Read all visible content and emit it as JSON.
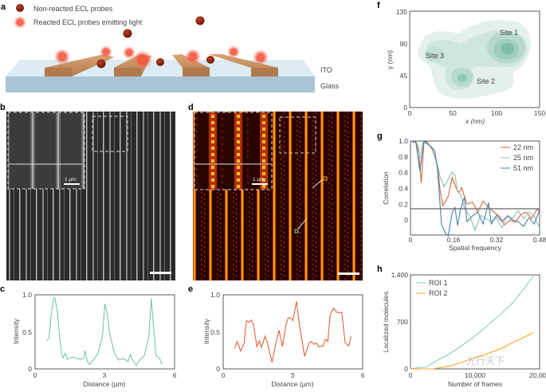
{
  "panels": {
    "a": {
      "label": "a",
      "legend": [
        "Non-reacted ECL probes",
        "Reacted ECL probes emitting light"
      ],
      "layers": [
        "ITO",
        "Glass"
      ]
    },
    "b": {
      "label": "b",
      "inset_scale": "1 µm"
    },
    "c": {
      "label": "c"
    },
    "d": {
      "label": "d",
      "inset_scale": "1 µm"
    },
    "e": {
      "label": "e"
    },
    "f": {
      "label": "f",
      "xlabel": "x (nm)",
      "ylabel": "y (nm)",
      "xticks": [
        "0",
        "50",
        "100",
        "150"
      ],
      "yticks": [
        "0",
        "45",
        "90",
        "135"
      ],
      "sites": [
        "Site 1",
        "Site 2",
        "Site 3"
      ],
      "color": "#5fae95"
    },
    "g": {
      "label": "g"
    },
    "h": {
      "label": "h"
    }
  },
  "watermark": "光行天下",
  "chart_data": [
    {
      "panel": "c",
      "type": "line",
      "xlabel": "Distance (µm)",
      "ylabel": "Intensity",
      "xlim": [
        0,
        6
      ],
      "ylim": [
        0,
        1.0
      ],
      "xticks": [
        "0",
        "3",
        "6"
      ],
      "yticks": [
        "0",
        "0.5",
        "1.0"
      ],
      "series": [
        {
          "color": "#7cc4a8",
          "x": [
            0.5,
            0.6,
            0.7,
            0.8,
            0.85,
            0.95,
            1.05,
            1.15,
            1.2,
            1.3,
            1.4,
            1.6,
            1.8,
            2.0,
            2.1,
            2.15,
            2.25,
            2.35,
            2.5,
            2.7,
            2.9,
            3.0,
            3.1,
            3.2,
            3.4,
            3.6,
            3.8,
            4.0,
            4.1,
            4.2,
            4.35,
            4.5,
            4.7,
            4.9,
            5.0,
            5.1,
            5.2,
            5.35,
            5.45
          ],
          "y": [
            0.38,
            0.42,
            0.75,
            0.95,
            0.96,
            0.8,
            0.45,
            0.2,
            0.15,
            0.21,
            0.13,
            0.16,
            0.14,
            0.13,
            0.15,
            0.25,
            0.1,
            0.06,
            0.12,
            0.2,
            0.45,
            0.88,
            0.75,
            0.5,
            0.22,
            0.12,
            0.14,
            0.1,
            0.2,
            0.12,
            0.05,
            0.12,
            0.18,
            0.45,
            0.95,
            0.55,
            0.18,
            0.15,
            0.06
          ]
        }
      ]
    },
    {
      "panel": "e",
      "type": "line",
      "xlabel": "Distance (µm)",
      "ylabel": "Intensity",
      "xlim": [
        0,
        6
      ],
      "ylim": [
        0,
        1.0
      ],
      "xticks": [
        "0",
        "3",
        "6"
      ],
      "yticks": [
        "0",
        "0.5",
        "1.0"
      ],
      "series": [
        {
          "color": "#e0643a",
          "x": [
            0.5,
            0.6,
            0.75,
            0.9,
            1.0,
            1.1,
            1.2,
            1.3,
            1.45,
            1.55,
            1.65,
            1.8,
            1.9,
            2.1,
            2.3,
            2.4,
            2.55,
            2.7,
            2.8,
            2.9,
            3.0,
            3.15,
            3.3,
            3.5,
            3.7,
            3.8,
            3.9,
            4.0,
            4.1,
            4.3,
            4.4,
            4.5,
            4.6,
            4.75,
            4.9,
            5.1,
            5.25,
            5.4,
            5.5
          ],
          "y": [
            0.28,
            0.37,
            0.24,
            0.35,
            0.65,
            0.63,
            0.66,
            0.6,
            0.3,
            0.38,
            0.29,
            0.44,
            0.35,
            0.09,
            0.4,
            0.52,
            0.3,
            0.6,
            0.69,
            0.69,
            0.65,
            0.91,
            0.55,
            0.17,
            0.35,
            0.37,
            0.33,
            0.35,
            0.3,
            0.31,
            0.4,
            0.37,
            0.73,
            0.82,
            0.76,
            0.76,
            0.35,
            0.31,
            0.44
          ]
        }
      ]
    },
    {
      "panel": "g",
      "type": "line",
      "xlabel": "Spatial frequency",
      "ylabel": "Correlation",
      "xlim": [
        0,
        0.48
      ],
      "ylim": [
        -0.19,
        1.0
      ],
      "xticks": [
        "0",
        "0.16",
        "0.32",
        "0.48"
      ],
      "yticks": [
        "0",
        "0.2",
        "0.4",
        "0.6",
        "0.8",
        "1.0"
      ],
      "threshold": 0.143,
      "legend": "top-right",
      "series": [
        {
          "name": "22 nm",
          "color": "#d9653b",
          "x": [
            0,
            0.02,
            0.03,
            0.04,
            0.05,
            0.06,
            0.07,
            0.08,
            0.1,
            0.11,
            0.12,
            0.14,
            0.155,
            0.17,
            0.18,
            0.19,
            0.21,
            0.23,
            0.25,
            0.27,
            0.29,
            0.31,
            0.33,
            0.35,
            0.37,
            0.39,
            0.41,
            0.43,
            0.45,
            0.47,
            0.48
          ],
          "y": [
            1,
            0.99,
            0.9,
            0.47,
            0.99,
            0.99,
            0.95,
            0.9,
            0.7,
            0.38,
            0.18,
            0.3,
            0.54,
            0.4,
            0.35,
            0.41,
            0.2,
            0.23,
            0.1,
            0.24,
            0.16,
            0.1,
            0.05,
            -0.06,
            0,
            -0.03,
            0.07,
            0.1,
            0.02,
            0.13,
            0.13
          ]
        },
        {
          "name": "25 nm",
          "color": "#8dbfa6",
          "x": [
            0,
            0.02,
            0.035,
            0.045,
            0.06,
            0.08,
            0.1,
            0.11,
            0.125,
            0.14,
            0.155,
            0.165,
            0.175,
            0.185,
            0.2,
            0.22,
            0.24,
            0.26,
            0.28,
            0.3,
            0.32,
            0.34,
            0.36,
            0.38,
            0.4,
            0.42,
            0.44,
            0.46,
            0.48
          ],
          "y": [
            1,
            0.98,
            0.78,
            0.98,
            0.97,
            0.92,
            0.7,
            0.55,
            0.42,
            0.52,
            0.61,
            0.57,
            0.36,
            0.33,
            0.15,
            0.05,
            -0.13,
            0.06,
            0.02,
            -0.02,
            0.03,
            -0.1,
            0.06,
            0.02,
            0.12,
            0.02,
            0.1,
            0.05,
            -0.1
          ]
        },
        {
          "name": "51 nm",
          "color": "#4a7fb0",
          "x": [
            0,
            0.02,
            0.035,
            0.05,
            0.07,
            0.09,
            0.1,
            0.11,
            0.115,
            0.13,
            0.14,
            0.155,
            0.165,
            0.175,
            0.185,
            0.2,
            0.21,
            0.23,
            0.25,
            0.27,
            0.29,
            0.3,
            0.32,
            0.34,
            0.36,
            0.38,
            0.4,
            0.42,
            0.44,
            0.46,
            0.48
          ],
          "y": [
            1,
            0.98,
            0.62,
            1,
            0.95,
            0.88,
            0.65,
            0.2,
            -0.05,
            -0.17,
            -0.2,
            0.09,
            0.16,
            -0.07,
            0.12,
            0.29,
            -0.02,
            0.05,
            0.1,
            -0.05,
            0.22,
            -0.05,
            0.06,
            -0.02,
            0.05,
            0,
            -0.02,
            -0.08,
            0.03,
            -0.05,
            0.13
          ]
        }
      ]
    },
    {
      "panel": "h",
      "type": "line",
      "xlabel": "Number of frames",
      "ylabel": "Localized molecules",
      "xlim": [
        0,
        20000
      ],
      "ylim": [
        0,
        1400
      ],
      "xticks": [
        "0",
        "10,000",
        "20,000"
      ],
      "yticks": [
        "0",
        "700",
        "1,400"
      ],
      "legend": "top-left",
      "series": [
        {
          "name": "ROI 1",
          "color": "#8ecfb4",
          "x": [
            0,
            1000,
            2500,
            4000,
            6000,
            8000,
            10000,
            12000,
            14000,
            16000,
            18000,
            19000
          ],
          "y": [
            0,
            15,
            30,
            120,
            220,
            350,
            490,
            650,
            820,
            1000,
            1250,
            1380
          ]
        },
        {
          "name": "ROI 2",
          "color": "#f5a623",
          "x": [
            0,
            3500,
            6000,
            8000,
            10000,
            12000,
            14000,
            16000,
            18000,
            19000
          ],
          "y": [
            0,
            0,
            40,
            100,
            170,
            230,
            300,
            400,
            490,
            540
          ]
        }
      ]
    }
  ]
}
